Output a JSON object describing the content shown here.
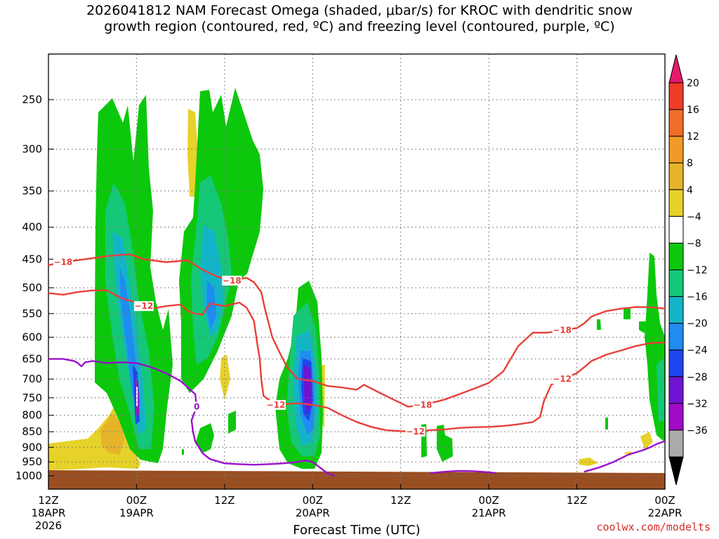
{
  "header": {
    "title_line1": "2026041812 NAM Forecast Omega (shaded, μbar/s) for KROC with dendritic snow",
    "title_line2": "growth region (contoured, red, ºC) and freezing level (contoured, purple, ºC)"
  },
  "credit": "coolwx.com/modelts",
  "chart_data": {
    "type": "contour",
    "title": "2026041812 NAM Forecast Omega (shaded, μbar/s) for KROC with dendritic snow growth region (contoured, red, ºC) and freezing level (contoured, purple, ºC)",
    "xlabel": "Forecast Time (UTC)",
    "ylabel": "",
    "x_range_hours": [
      0,
      84
    ],
    "x_ticks": [
      {
        "hour": 0,
        "label": "12Z",
        "date": "18APR",
        "year": "2026"
      },
      {
        "hour": 12,
        "label": "00Z",
        "date": "19APR"
      },
      {
        "hour": 24,
        "label": "12Z"
      },
      {
        "hour": 36,
        "label": "00Z",
        "date": "20APR"
      },
      {
        "hour": 48,
        "label": "12Z"
      },
      {
        "hour": 60,
        "label": "00Z",
        "date": "21APR"
      },
      {
        "hour": 72,
        "label": "12Z"
      },
      {
        "hour": 84,
        "label": "00Z",
        "date": "22APR"
      }
    ],
    "y_scale": "log-pressure (inverted)",
    "y_ticks": [
      "250",
      "300",
      "350",
      "400",
      "450",
      "500",
      "550",
      "600",
      "650",
      "700",
      "750",
      "800",
      "850",
      "900",
      "950",
      "1000"
    ],
    "grid": true,
    "colorbar": {
      "labels": [
        "20",
        "16",
        "12",
        "8",
        "4",
        "−4",
        "−8",
        "−12",
        "−16",
        "−20",
        "−24",
        "−28",
        "−32",
        "−36"
      ],
      "colors": [
        "#e8186e",
        "#f03c28",
        "#f06e28",
        "#f09a28",
        "#e6b428",
        "#e6d228",
        "#ffffff",
        "#0cc80c",
        "#14c878",
        "#14b4c8",
        "#1e8cf0",
        "#1e46f0",
        "#6e14d2",
        "#a00ac8",
        "#aaaaaa",
        "#000000"
      ]
    },
    "series": [
      {
        "name": "-18",
        "kind": "temperature",
        "color": "#e8403a",
        "points": [
          [
            0,
            460
          ],
          [
            2,
            455
          ],
          [
            5,
            450
          ],
          [
            8,
            445
          ],
          [
            11,
            442
          ],
          [
            13,
            450
          ],
          [
            16,
            455
          ],
          [
            19,
            452
          ],
          [
            21,
            468
          ],
          [
            23,
            480
          ],
          [
            25,
            487
          ],
          [
            27,
            482
          ],
          [
            28,
            490
          ],
          [
            29,
            508
          ],
          [
            29.5,
            540
          ],
          [
            30.5,
            600
          ],
          [
            31.5,
            635
          ],
          [
            32.5,
            670
          ],
          [
            34,
            700
          ],
          [
            36,
            705
          ],
          [
            38,
            718
          ],
          [
            40,
            722
          ],
          [
            42,
            728
          ],
          [
            43,
            715
          ],
          [
            45,
            735
          ],
          [
            47,
            755
          ],
          [
            49,
            775
          ],
          [
            51,
            770
          ],
          [
            52,
            765
          ],
          [
            53,
            760
          ],
          [
            54,
            755
          ],
          [
            56,
            740
          ],
          [
            58,
            725
          ],
          [
            60,
            710
          ],
          [
            62,
            680
          ],
          [
            64,
            620
          ],
          [
            66,
            590
          ],
          [
            68,
            590
          ],
          [
            70,
            585
          ],
          [
            72,
            580
          ],
          [
            73,
            570
          ],
          [
            74,
            556
          ],
          [
            76,
            545
          ],
          [
            78,
            540
          ],
          [
            80,
            537
          ],
          [
            82,
            537
          ],
          [
            84,
            540
          ]
        ]
      },
      {
        "name": "-12",
        "kind": "temperature",
        "color": "#e8403a",
        "points": [
          [
            0,
            510
          ],
          [
            2,
            513
          ],
          [
            4,
            508
          ],
          [
            6,
            505
          ],
          [
            8,
            505
          ],
          [
            10,
            520
          ],
          [
            12,
            528
          ],
          [
            13,
            535
          ],
          [
            14,
            540
          ],
          [
            16,
            535
          ],
          [
            18,
            532
          ],
          [
            19,
            545
          ],
          [
            20,
            550
          ],
          [
            21,
            552
          ],
          [
            22,
            530
          ],
          [
            24,
            535
          ],
          [
            26,
            528
          ],
          [
            27,
            538
          ],
          [
            28,
            565
          ],
          [
            28.5,
            620
          ],
          [
            28.8,
            650
          ],
          [
            29,
            700
          ],
          [
            29.3,
            745
          ],
          [
            31,
            770
          ],
          [
            34,
            765
          ],
          [
            36,
            770
          ],
          [
            38,
            778
          ],
          [
            40,
            800
          ],
          [
            42,
            820
          ],
          [
            44,
            835
          ],
          [
            46,
            845
          ],
          [
            48,
            848
          ],
          [
            50,
            850
          ],
          [
            52,
            845
          ],
          [
            54,
            843
          ],
          [
            56,
            838
          ],
          [
            58,
            836
          ],
          [
            60,
            835
          ],
          [
            62,
            832
          ],
          [
            64,
            827
          ],
          [
            66,
            820
          ],
          [
            67,
            805
          ],
          [
            67.5,
            760
          ],
          [
            68.5,
            715
          ],
          [
            70,
            700
          ],
          [
            72,
            685
          ],
          [
            73,
            670
          ],
          [
            74,
            655
          ],
          [
            76,
            640
          ],
          [
            78,
            630
          ],
          [
            80,
            620
          ],
          [
            82,
            613
          ],
          [
            84,
            612
          ]
        ]
      },
      {
        "name": "0",
        "kind": "freezing_level",
        "color": "#9a10c8",
        "points": [
          [
            0,
            650
          ],
          [
            2,
            650
          ],
          [
            3.5,
            655
          ],
          [
            4,
            660
          ],
          [
            4.5,
            668
          ],
          [
            5,
            658
          ],
          [
            6,
            655
          ],
          [
            8,
            660
          ],
          [
            10,
            658
          ],
          [
            12,
            660
          ],
          [
            14,
            670
          ],
          [
            16,
            685
          ],
          [
            18,
            705
          ],
          [
            20,
            740
          ],
          [
            20.2,
            775
          ],
          [
            19.5,
            815
          ],
          [
            19.7,
            850
          ],
          [
            20,
            880
          ],
          [
            21,
            920
          ],
          [
            22,
            940
          ],
          [
            24,
            955
          ],
          [
            26,
            958
          ],
          [
            28,
            960
          ],
          [
            30,
            958
          ],
          [
            32,
            955
          ],
          [
            34,
            950
          ],
          [
            35,
            945
          ],
          [
            36,
            950
          ],
          [
            37,
            970
          ],
          [
            38,
            990
          ],
          [
            39,
            1000
          ]
        ]
      },
      {
        "name": "0",
        "kind": "freezing_level",
        "color": "#9a10c8",
        "points": [
          [
            52,
            990
          ],
          [
            54,
            985
          ],
          [
            56,
            982
          ],
          [
            58,
            983
          ],
          [
            60,
            987
          ],
          [
            61,
            990
          ]
        ]
      },
      {
        "name": "0",
        "kind": "freezing_level",
        "color": "#9a10c8",
        "points": [
          [
            73,
            985
          ],
          [
            75,
            970
          ],
          [
            77,
            950
          ],
          [
            79,
            925
          ],
          [
            81,
            910
          ],
          [
            82,
            900
          ],
          [
            83,
            888
          ],
          [
            84,
            880
          ]
        ]
      }
    ]
  }
}
